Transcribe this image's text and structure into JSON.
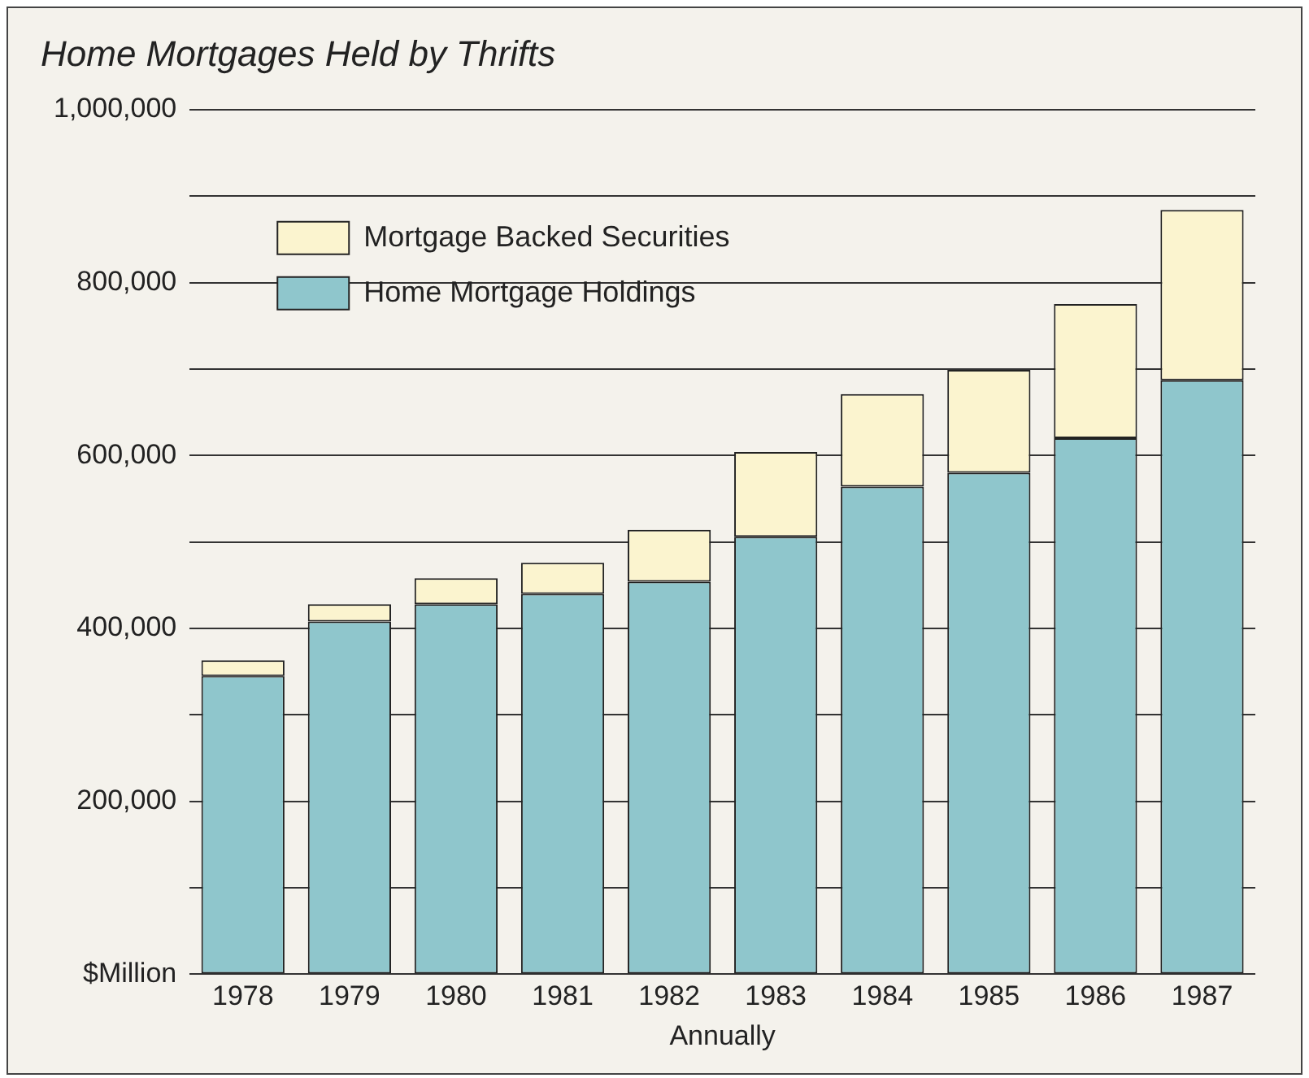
{
  "chart_data": {
    "type": "bar",
    "title": "Home Mortgages Held by Thrifts",
    "xlabel": "Annually",
    "stacked": true,
    "legend": "top left",
    "grid": "y",
    "categories": [
      "1978",
      "1979",
      "1980",
      "1981",
      "1982",
      "1983",
      "1984",
      "1985",
      "1986",
      "1987"
    ],
    "series": [
      {
        "name": "Home Mortgage Holdings",
        "color": "#8fc6cc",
        "values": [
          345000,
          408000,
          428000,
          440000,
          454000,
          506000,
          564000,
          580000,
          620000,
          687000
        ]
      },
      {
        "name": "Mortgage Backed Securities",
        "color": "#fbf4cf",
        "values": [
          18000,
          20000,
          30000,
          36000,
          60000,
          98000,
          107000,
          119000,
          155000,
          197000
        ]
      }
    ],
    "ylim": [
      0,
      1000000
    ],
    "yticks": [
      {
        "value": 0,
        "label": "$Million"
      },
      {
        "value": 100000,
        "label": null
      },
      {
        "value": 200000,
        "label": "200,000"
      },
      {
        "value": 300000,
        "label": null
      },
      {
        "value": 400000,
        "label": "400,000"
      },
      {
        "value": 500000,
        "label": null
      },
      {
        "value": 600000,
        "label": "600,000"
      },
      {
        "value": 700000,
        "label": null
      },
      {
        "value": 800000,
        "label": "800,000"
      },
      {
        "value": 900000,
        "label": null
      },
      {
        "value": 1000000,
        "label": "1,000,000"
      }
    ]
  }
}
